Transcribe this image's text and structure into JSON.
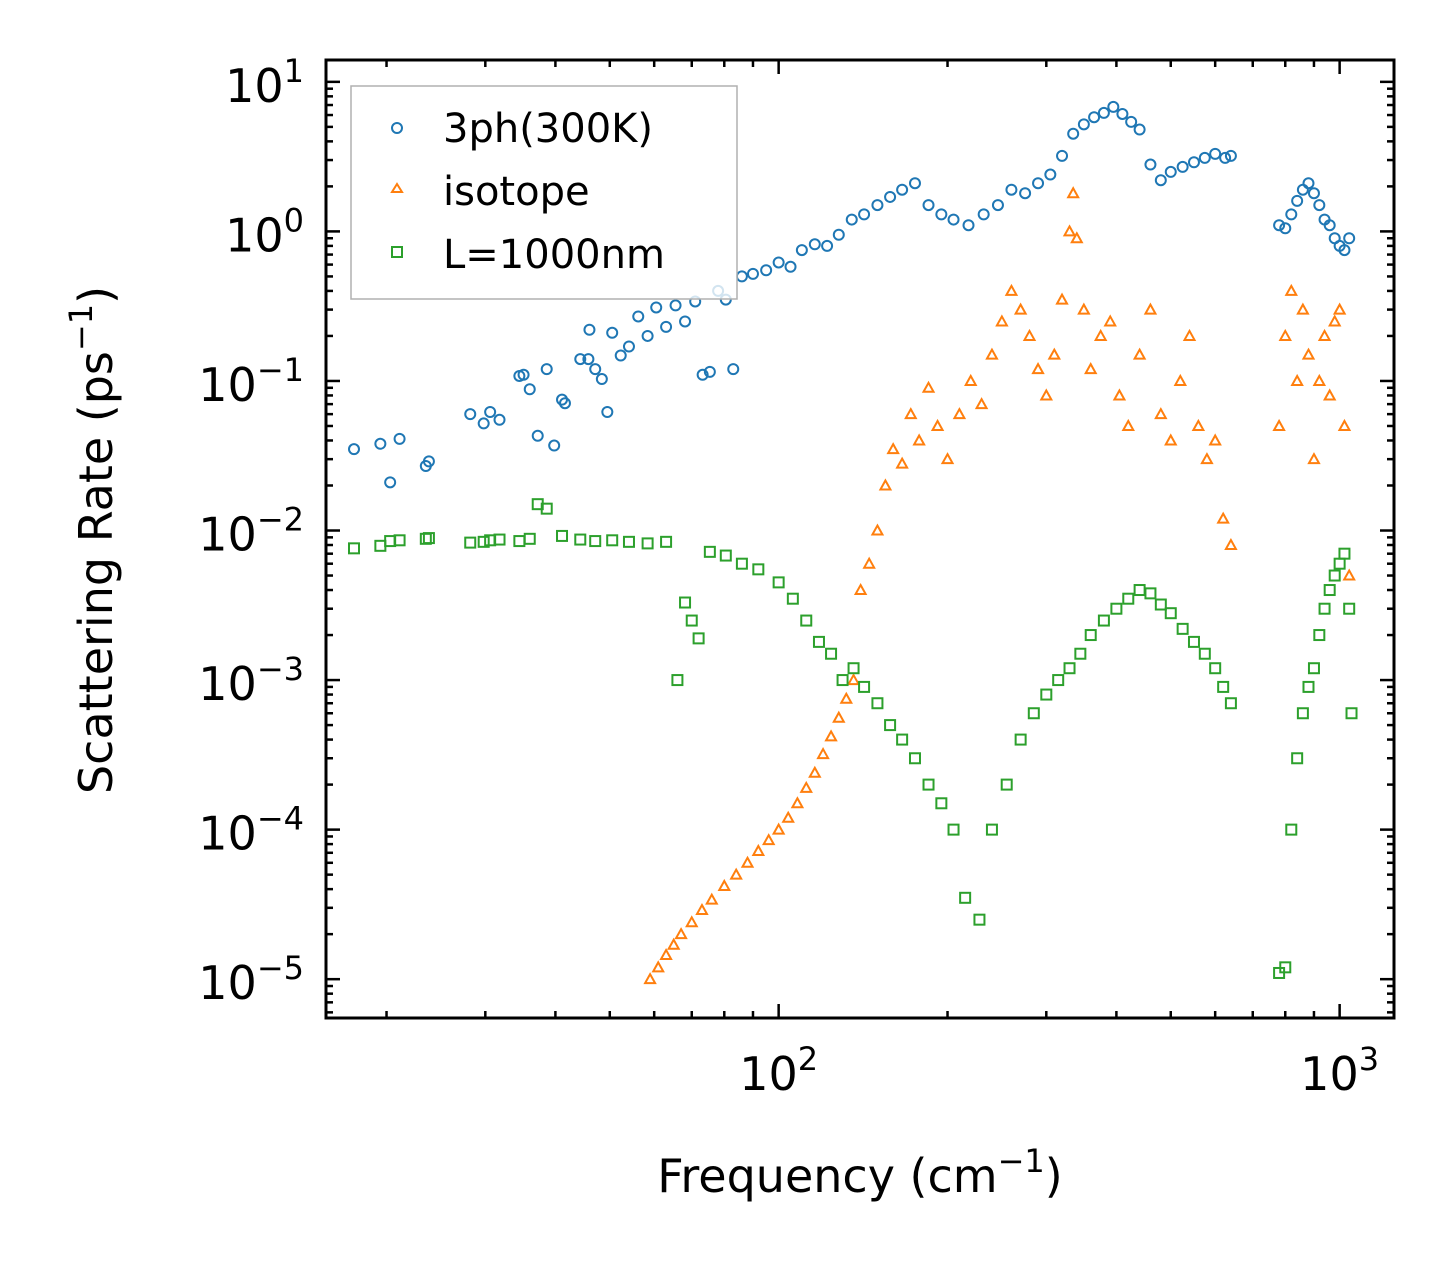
{
  "chart_data": {
    "type": "scatter",
    "xscale": "log",
    "yscale": "log",
    "xlim": [
      15.6,
      1250
    ],
    "ylim": [
      5.5e-06,
      14
    ],
    "xlabel": {
      "text": "Frequency (cm",
      "sup": "−1",
      "close": ")"
    },
    "ylabel": {
      "text": "Scattering Rate (ps",
      "sup": "−1",
      "close": ")"
    },
    "xticks": [
      {
        "value": 100,
        "base": "10",
        "exp": "2"
      },
      {
        "value": 1000,
        "base": "10",
        "exp": "3"
      }
    ],
    "yticks": [
      {
        "value": 10,
        "base": "10",
        "exp": "1"
      },
      {
        "value": 1,
        "base": "10",
        "exp": "0"
      },
      {
        "value": 0.1,
        "base": "10",
        "exp": "−1"
      },
      {
        "value": 0.01,
        "base": "10",
        "exp": "−2"
      },
      {
        "value": 0.001,
        "base": "10",
        "exp": "−3"
      },
      {
        "value": 0.0001,
        "base": "10",
        "exp": "−4"
      },
      {
        "value": 1e-05,
        "base": "10",
        "exp": "−5"
      }
    ],
    "legend_position": "top-left",
    "series": [
      {
        "name": "3ph(300K)",
        "marker": "circle",
        "color": "#1f77b4",
        "points": [
          [
            17.5,
            0.035
          ],
          [
            19.5,
            0.038
          ],
          [
            20.3,
            0.021
          ],
          [
            21.1,
            0.041
          ],
          [
            23.5,
            0.027
          ],
          [
            23.8,
            0.029
          ],
          [
            28.2,
            0.06
          ],
          [
            29.8,
            0.052
          ],
          [
            30.6,
            0.062
          ],
          [
            31.8,
            0.055
          ],
          [
            34.5,
            0.108
          ],
          [
            35.1,
            0.11
          ],
          [
            36,
            0.088
          ],
          [
            37.2,
            0.043
          ],
          [
            38.6,
            0.12
          ],
          [
            39.8,
            0.037
          ],
          [
            41.1,
            0.075
          ],
          [
            41.6,
            0.071
          ],
          [
            44.3,
            0.14
          ],
          [
            45.8,
            0.14
          ],
          [
            46,
            0.22
          ],
          [
            47.1,
            0.12
          ],
          [
            48.4,
            0.103
          ],
          [
            49.5,
            0.062
          ],
          [
            50.5,
            0.21
          ],
          [
            52.3,
            0.148
          ],
          [
            54.1,
            0.17
          ],
          [
            56.2,
            0.27
          ],
          [
            58.4,
            0.2
          ],
          [
            60.5,
            0.31
          ],
          [
            63,
            0.23
          ],
          [
            65.5,
            0.32
          ],
          [
            68.1,
            0.25
          ],
          [
            71,
            0.34
          ],
          [
            73.2,
            0.11
          ],
          [
            75.4,
            0.115
          ],
          [
            78,
            0.4
          ],
          [
            80.5,
            0.35
          ],
          [
            83,
            0.12
          ],
          [
            86,
            0.5
          ],
          [
            90,
            0.52
          ],
          [
            95,
            0.55
          ],
          [
            100,
            0.62
          ],
          [
            105,
            0.58
          ],
          [
            110,
            0.75
          ],
          [
            116,
            0.82
          ],
          [
            122,
            0.8
          ],
          [
            128,
            0.95
          ],
          [
            135,
            1.2
          ],
          [
            142,
            1.3
          ],
          [
            150,
            1.5
          ],
          [
            158,
            1.7
          ],
          [
            166,
            1.9
          ],
          [
            175,
            2.1
          ],
          [
            185,
            1.5
          ],
          [
            195,
            1.3
          ],
          [
            205,
            1.2
          ],
          [
            218,
            1.1
          ],
          [
            232,
            1.3
          ],
          [
            246,
            1.5
          ],
          [
            260,
            1.9
          ],
          [
            275,
            1.8
          ],
          [
            290,
            2.1
          ],
          [
            305,
            2.4
          ],
          [
            320,
            3.2
          ],
          [
            335,
            4.5
          ],
          [
            350,
            5.2
          ],
          [
            365,
            5.8
          ],
          [
            380,
            6.2
          ],
          [
            395,
            6.8
          ],
          [
            410,
            6.1
          ],
          [
            425,
            5.4
          ],
          [
            440,
            4.8
          ],
          [
            460,
            2.8
          ],
          [
            480,
            2.2
          ],
          [
            500,
            2.5
          ],
          [
            525,
            2.7
          ],
          [
            550,
            2.9
          ],
          [
            575,
            3.1
          ],
          [
            600,
            3.3
          ],
          [
            625,
            3.1
          ],
          [
            640,
            3.2
          ],
          [
            780,
            1.1
          ],
          [
            800,
            1.05
          ],
          [
            820,
            1.3
          ],
          [
            840,
            1.6
          ],
          [
            860,
            1.9
          ],
          [
            880,
            2.1
          ],
          [
            900,
            1.8
          ],
          [
            920,
            1.5
          ],
          [
            940,
            1.2
          ],
          [
            960,
            1.1
          ],
          [
            980,
            0.9
          ],
          [
            1000,
            0.8
          ],
          [
            1020,
            0.75
          ],
          [
            1040,
            0.9
          ]
        ]
      },
      {
        "name": "isotope",
        "marker": "triangle",
        "color": "#ff7f0e",
        "points": [
          [
            59,
            1e-05
          ],
          [
            61,
            1.2e-05
          ],
          [
            63,
            1.45e-05
          ],
          [
            65,
            1.7e-05
          ],
          [
            67,
            2e-05
          ],
          [
            70,
            2.4e-05
          ],
          [
            73,
            2.9e-05
          ],
          [
            76,
            3.4e-05
          ],
          [
            80,
            4.2e-05
          ],
          [
            84,
            5e-05
          ],
          [
            88,
            6e-05
          ],
          [
            92,
            7.2e-05
          ],
          [
            96,
            8.5e-05
          ],
          [
            100,
            0.0001
          ],
          [
            104,
            0.00012
          ],
          [
            108,
            0.00015
          ],
          [
            112,
            0.00019
          ],
          [
            116,
            0.00024
          ],
          [
            120,
            0.00032
          ],
          [
            124,
            0.00042
          ],
          [
            128,
            0.00056
          ],
          [
            132,
            0.00075
          ],
          [
            136,
            0.001
          ],
          [
            140,
            0.004
          ],
          [
            145,
            0.006
          ],
          [
            150,
            0.01
          ],
          [
            155,
            0.02
          ],
          [
            160,
            0.035
          ],
          [
            166,
            0.028
          ],
          [
            172,
            0.06
          ],
          [
            178,
            0.04
          ],
          [
            185,
            0.09
          ],
          [
            192,
            0.05
          ],
          [
            200,
            0.03
          ],
          [
            210,
            0.06
          ],
          [
            220,
            0.1
          ],
          [
            230,
            0.07
          ],
          [
            240,
            0.15
          ],
          [
            250,
            0.25
          ],
          [
            260,
            0.4
          ],
          [
            270,
            0.3
          ],
          [
            280,
            0.2
          ],
          [
            290,
            0.12
          ],
          [
            300,
            0.08
          ],
          [
            310,
            0.15
          ],
          [
            320,
            0.35
          ],
          [
            330,
            1.0
          ],
          [
            335,
            1.8
          ],
          [
            340,
            0.9
          ],
          [
            350,
            0.3
          ],
          [
            360,
            0.12
          ],
          [
            375,
            0.2
          ],
          [
            390,
            0.25
          ],
          [
            405,
            0.08
          ],
          [
            420,
            0.05
          ],
          [
            440,
            0.15
          ],
          [
            460,
            0.3
          ],
          [
            480,
            0.06
          ],
          [
            500,
            0.04
          ],
          [
            520,
            0.1
          ],
          [
            540,
            0.2
          ],
          [
            560,
            0.05
          ],
          [
            580,
            0.03
          ],
          [
            600,
            0.04
          ],
          [
            620,
            0.012
          ],
          [
            640,
            0.008
          ],
          [
            780,
            0.05
          ],
          [
            800,
            0.2
          ],
          [
            820,
            0.4
          ],
          [
            840,
            0.1
          ],
          [
            860,
            0.3
          ],
          [
            880,
            0.15
          ],
          [
            900,
            0.03
          ],
          [
            920,
            0.1
          ],
          [
            940,
            0.2
          ],
          [
            960,
            0.08
          ],
          [
            980,
            0.25
          ],
          [
            1000,
            0.3
          ],
          [
            1020,
            0.05
          ],
          [
            1040,
            0.005
          ]
        ]
      },
      {
        "name": "L=1000nm",
        "marker": "square",
        "color": "#2ca02c",
        "points": [
          [
            17.5,
            0.0076
          ],
          [
            19.5,
            0.0079
          ],
          [
            20.3,
            0.0085
          ],
          [
            21.1,
            0.0086
          ],
          [
            23.5,
            0.0088
          ],
          [
            23.8,
            0.0089
          ],
          [
            28.2,
            0.0083
          ],
          [
            29.8,
            0.0084
          ],
          [
            30.6,
            0.0086
          ],
          [
            31.8,
            0.0087
          ],
          [
            34.5,
            0.0085
          ],
          [
            36,
            0.0088
          ],
          [
            37.2,
            0.015
          ],
          [
            38.6,
            0.014
          ],
          [
            41.1,
            0.0092
          ],
          [
            44.3,
            0.0087
          ],
          [
            47.1,
            0.0085
          ],
          [
            50.5,
            0.0086
          ],
          [
            54.1,
            0.0084
          ],
          [
            58.4,
            0.0082
          ],
          [
            63,
            0.0084
          ],
          [
            66,
            0.001
          ],
          [
            68.1,
            0.0033
          ],
          [
            70,
            0.0025
          ],
          [
            72,
            0.0019
          ],
          [
            75.4,
            0.0072
          ],
          [
            80.5,
            0.0068
          ],
          [
            86,
            0.006
          ],
          [
            92,
            0.0055
          ],
          [
            100,
            0.0045
          ],
          [
            106,
            0.0035
          ],
          [
            112,
            0.0025
          ],
          [
            118,
            0.0018
          ],
          [
            124,
            0.0015
          ],
          [
            130,
            0.001
          ],
          [
            136,
            0.0012
          ],
          [
            142,
            0.0009
          ],
          [
            150,
            0.0007
          ],
          [
            158,
            0.0005
          ],
          [
            166,
            0.0004
          ],
          [
            175,
            0.0003
          ],
          [
            185,
            0.0002
          ],
          [
            195,
            0.00015
          ],
          [
            205,
            0.0001
          ],
          [
            215,
            3.5e-05
          ],
          [
            228,
            2.5e-05
          ],
          [
            240,
            0.0001
          ],
          [
            255,
            0.0002
          ],
          [
            270,
            0.0004
          ],
          [
            285,
            0.0006
          ],
          [
            300,
            0.0008
          ],
          [
            315,
            0.001
          ],
          [
            330,
            0.0012
          ],
          [
            345,
            0.0015
          ],
          [
            360,
            0.002
          ],
          [
            380,
            0.0025
          ],
          [
            400,
            0.003
          ],
          [
            420,
            0.0035
          ],
          [
            440,
            0.004
          ],
          [
            460,
            0.0038
          ],
          [
            480,
            0.0032
          ],
          [
            500,
            0.0028
          ],
          [
            525,
            0.0022
          ],
          [
            550,
            0.0018
          ],
          [
            575,
            0.0015
          ],
          [
            600,
            0.0012
          ],
          [
            620,
            0.0009
          ],
          [
            640,
            0.0007
          ],
          [
            780,
            1.1e-05
          ],
          [
            800,
            1.2e-05
          ],
          [
            820,
            0.0001
          ],
          [
            840,
            0.0003
          ],
          [
            860,
            0.0006
          ],
          [
            880,
            0.0009
          ],
          [
            900,
            0.0012
          ],
          [
            920,
            0.002
          ],
          [
            940,
            0.003
          ],
          [
            960,
            0.004
          ],
          [
            980,
            0.005
          ],
          [
            1000,
            0.006
          ],
          [
            1020,
            0.007
          ],
          [
            1040,
            0.003
          ],
          [
            1050,
            0.0006
          ]
        ]
      }
    ]
  }
}
